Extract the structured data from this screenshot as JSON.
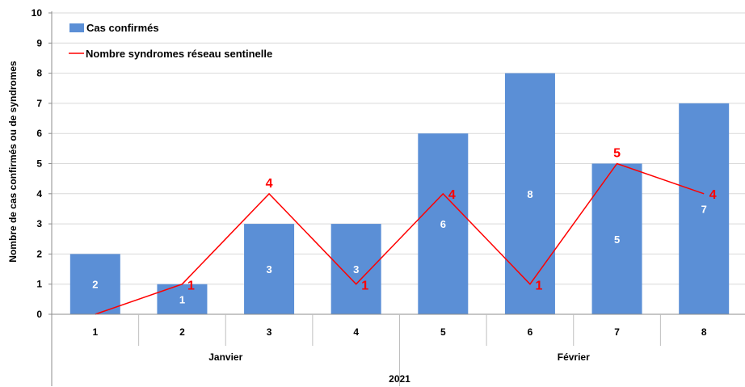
{
  "chart_data": {
    "type": "bar",
    "title": "",
    "ylabel": "Nombre de cas confirmés ou de syndromes",
    "ylim": [
      0,
      10
    ],
    "yticks": [
      "0",
      "1",
      "2",
      "3",
      "4",
      "5",
      "6",
      "7",
      "8",
      "9",
      "10"
    ],
    "categories": [
      "1",
      "2",
      "3",
      "4",
      "5",
      "6",
      "7",
      "8"
    ],
    "groups": [
      {
        "label": "Janvier",
        "categories": [
          "1",
          "2",
          "3",
          "4"
        ]
      },
      {
        "label": "Février",
        "categories": [
          "5",
          "6",
          "7",
          "8"
        ]
      }
    ],
    "year_label": "2021",
    "series": [
      {
        "name": "Cas confirmés",
        "type": "bar",
        "color": "#5b8fd6",
        "values": [
          2,
          1,
          3,
          3,
          6,
          8,
          5,
          7
        ],
        "data_labels": [
          "2",
          "1",
          "3",
          "3",
          "6",
          "8",
          "5",
          "7"
        ]
      },
      {
        "name": "Nombre syndromes réseau sentinelle",
        "type": "line",
        "color": "#ff0000",
        "values": [
          0,
          1,
          4,
          1,
          4,
          1,
          5,
          4
        ],
        "data_labels": [
          "",
          "1",
          "4",
          "1",
          "4",
          "1",
          "5",
          "4"
        ]
      }
    ],
    "legend_position": "top-left",
    "grid": true
  }
}
